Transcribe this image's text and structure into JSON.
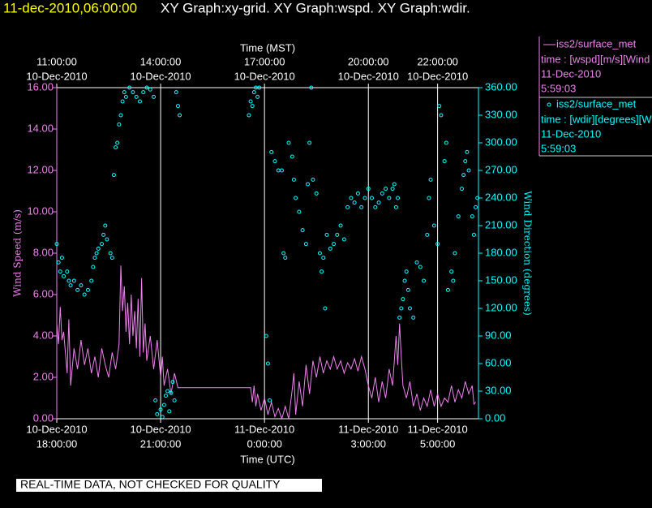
{
  "header": {
    "timestamp": "11-dec-2010,06:00:00",
    "title": "XY Graph:xy-grid.  XY Graph:wspd.  XY Graph:wdir."
  },
  "chart_data": {
    "type": "line",
    "grid": true,
    "xlabel": "Time (UTC)",
    "x2label": "Time (MST)",
    "ylabel": "Wind Speed (m/s)",
    "y2label": "Wind Direction (degrees)",
    "xlim": [
      18,
      30.18
    ],
    "xticks": [
      {
        "value": 18,
        "label": [
          "10-Dec-2010",
          "18:00:00"
        ]
      },
      {
        "value": 21,
        "label": [
          "10-Dec-2010",
          "21:00:00"
        ]
      },
      {
        "value": 24,
        "label": [
          "11-Dec-2010",
          "0:00:00"
        ]
      },
      {
        "value": 27,
        "label": [
          "11-Dec-2010",
          "3:00:00"
        ]
      },
      {
        "value": 29,
        "label": [
          "11-Dec-2010",
          "5:00:00"
        ]
      }
    ],
    "x2ticks": [
      {
        "value": 18,
        "label": [
          "11:00:00",
          "10-Dec-2010"
        ]
      },
      {
        "value": 21,
        "label": [
          "14:00:00",
          "10-Dec-2010"
        ]
      },
      {
        "value": 24,
        "label": [
          "17:00:00",
          "10-Dec-2010"
        ]
      },
      {
        "value": 27,
        "label": [
          "20:00:00",
          "10-Dec-2010"
        ]
      },
      {
        "value": 29,
        "label": [
          "22:00:00",
          "10-Dec-2010"
        ]
      }
    ],
    "ylim": [
      0,
      16
    ],
    "yticks": [
      {
        "value": 0,
        "label": "0.00"
      },
      {
        "value": 2,
        "label": "2.00"
      },
      {
        "value": 4,
        "label": "4.00"
      },
      {
        "value": 6,
        "label": "6.00"
      },
      {
        "value": 8,
        "label": "8.00"
      },
      {
        "value": 10,
        "label": "10.00"
      },
      {
        "value": 12,
        "label": "12.00"
      },
      {
        "value": 14,
        "label": "14.00"
      },
      {
        "value": 16,
        "label": "16.00"
      }
    ],
    "y2lim": [
      0,
      360
    ],
    "y2ticks": [
      {
        "value": 0,
        "label": "0.00"
      },
      {
        "value": 30,
        "label": "30.00"
      },
      {
        "value": 60,
        "label": "60.00"
      },
      {
        "value": 90,
        "label": "90.00"
      },
      {
        "value": 120,
        "label": "120.00"
      },
      {
        "value": 150,
        "label": "150.00"
      },
      {
        "value": 180,
        "label": "180.00"
      },
      {
        "value": 210,
        "label": "210.00"
      },
      {
        "value": 240,
        "label": "240.00"
      },
      {
        "value": 270,
        "label": "270.00"
      },
      {
        "value": 300,
        "label": "300.00"
      },
      {
        "value": 330,
        "label": "330.00"
      },
      {
        "value": 360,
        "label": "360.00"
      }
    ],
    "series": [
      {
        "name": "iss2/surface_met",
        "type": "line",
        "color": "#ee82ee",
        "legend_text": [
          "time : [wspd][m/s][Wind",
          "11-Dec-2010",
          "5:59:03"
        ],
        "x": [
          18.0,
          18.05,
          18.1,
          18.15,
          18.2,
          18.3,
          18.35,
          18.4,
          18.5,
          18.6,
          18.7,
          18.8,
          18.9,
          19.0,
          19.1,
          19.2,
          19.3,
          19.4,
          19.5,
          19.6,
          19.7,
          19.8,
          19.85,
          19.9,
          19.95,
          20.0,
          20.05,
          20.1,
          20.15,
          20.2,
          20.25,
          20.3,
          20.35,
          20.4,
          20.45,
          20.5,
          20.55,
          20.6,
          20.7,
          20.8,
          20.9,
          21.0,
          21.05,
          21.1,
          21.2,
          21.3,
          21.4,
          21.5,
          23.6,
          23.65,
          23.7,
          23.75,
          23.8,
          23.9,
          24.0,
          24.1,
          24.2,
          24.3,
          24.4,
          24.5,
          24.6,
          24.7,
          24.8,
          24.85,
          24.9,
          25.0,
          25.1,
          25.2,
          25.3,
          25.4,
          25.5,
          25.6,
          25.7,
          25.8,
          25.9,
          26.0,
          26.1,
          26.2,
          26.3,
          26.4,
          26.5,
          26.6,
          26.7,
          26.8,
          26.9,
          27.0,
          27.1,
          27.2,
          27.3,
          27.4,
          27.5,
          27.6,
          27.7,
          27.8,
          27.85,
          27.9,
          27.95,
          28.0,
          28.1,
          28.2,
          28.3,
          28.4,
          28.5,
          28.6,
          28.7,
          28.8,
          28.9,
          29.0,
          29.1,
          29.2,
          29.3,
          29.4,
          29.5,
          29.6,
          29.7,
          29.8,
          29.9,
          30.0,
          30.05,
          30.1
        ],
        "values": [
          4.6,
          3.6,
          5.4,
          3.8,
          4.2,
          2.2,
          4.8,
          1.6,
          3.4,
          2.4,
          3.8,
          2.6,
          3.4,
          2.2,
          3.0,
          2.0,
          3.4,
          2.6,
          2.0,
          3.2,
          2.4,
          3.6,
          7.4,
          5.2,
          6.4,
          4.2,
          5.6,
          3.6,
          6.0,
          4.0,
          5.2,
          3.4,
          5.8,
          3.0,
          6.8,
          3.2,
          4.6,
          2.8,
          4.0,
          2.4,
          3.8,
          2.0,
          3.0,
          1.6,
          2.4,
          1.2,
          2.2,
          1.5,
          1.5,
          0.8,
          1.6,
          0.6,
          1.2,
          0.4,
          1.0,
          0.2,
          0.8,
          0.1,
          0.5,
          0.0,
          0.6,
          0.0,
          1.4,
          2.2,
          0.2,
          1.8,
          0.6,
          2.6,
          1.2,
          2.8,
          2.0,
          3.0,
          2.2,
          2.8,
          2.4,
          3.0,
          2.4,
          2.8,
          2.2,
          2.7,
          2.4,
          2.9,
          2.3,
          3.0,
          2.4,
          1.6,
          1.0,
          2.0,
          0.8,
          1.8,
          1.0,
          2.4,
          1.6,
          4.0,
          2.6,
          4.6,
          3.0,
          1.6,
          1.0,
          1.8,
          0.6,
          1.2,
          0.4,
          1.0,
          0.6,
          1.4,
          0.6,
          1.2,
          0.6,
          1.0,
          0.8,
          1.6,
          0.8,
          1.4,
          1.0,
          1.8,
          1.2,
          1.6,
          0.7,
          0.8
        ]
      },
      {
        "name": "iss2/surface_met",
        "type": "scatter",
        "axis": "y2",
        "color": "#00ffff",
        "legend_text": [
          "time : [wdir][degrees][W",
          "11-Dec-2010",
          "5:59:03"
        ],
        "x": [
          18.0,
          18.05,
          18.1,
          18.15,
          18.2,
          18.3,
          18.35,
          18.4,
          18.5,
          18.6,
          18.7,
          18.8,
          18.9,
          19.0,
          19.05,
          19.1,
          19.15,
          19.2,
          19.3,
          19.35,
          19.4,
          19.45,
          19.55,
          19.6,
          19.65,
          19.7,
          19.75,
          19.8,
          19.85,
          19.9,
          19.95,
          20.0,
          20.1,
          20.2,
          20.3,
          20.4,
          20.5,
          20.6,
          20.7,
          20.8,
          20.85,
          20.9,
          21.0,
          21.05,
          21.1,
          21.15,
          21.2,
          21.25,
          21.3,
          21.35,
          21.4,
          21.45,
          21.5,
          21.55,
          23.55,
          23.6,
          23.65,
          23.7,
          23.75,
          23.8,
          23.85,
          24.05,
          24.1,
          24.15,
          24.2,
          24.3,
          24.4,
          24.5,
          24.55,
          24.6,
          24.7,
          24.8,
          24.85,
          24.9,
          25.0,
          25.1,
          25.2,
          25.25,
          25.3,
          25.35,
          25.4,
          25.5,
          25.6,
          25.65,
          25.7,
          25.75,
          25.8,
          25.9,
          26.0,
          26.1,
          26.2,
          26.3,
          26.4,
          26.5,
          26.6,
          26.7,
          26.8,
          26.9,
          27.0,
          27.1,
          27.2,
          27.3,
          27.4,
          27.5,
          27.6,
          27.7,
          27.75,
          27.8,
          27.85,
          27.9,
          27.95,
          28.0,
          28.05,
          28.1,
          28.15,
          28.2,
          28.3,
          28.4,
          28.5,
          28.6,
          28.7,
          28.75,
          28.8,
          28.9,
          29.0,
          29.05,
          29.1,
          29.2,
          29.25,
          29.3,
          29.4,
          29.45,
          29.5,
          29.6,
          29.7,
          29.75,
          29.8,
          29.85,
          29.9,
          30.0,
          30.05,
          30.1,
          30.15
        ],
        "values": [
          190,
          170,
          160,
          175,
          155,
          160,
          150,
          145,
          150,
          140,
          145,
          135,
          140,
          150,
          165,
          175,
          180,
          185,
          190,
          200,
          210,
          195,
          180,
          175,
          265,
          295,
          300,
          320,
          330,
          345,
          355,
          350,
          360,
          355,
          350,
          345,
          355,
          360,
          358,
          350,
          20,
          5,
          10,
          2,
          15,
          25,
          30,
          8,
          28,
          40,
          20,
          355,
          340,
          330,
          330,
          345,
          340,
          355,
          360,
          350,
          360,
          90,
          60,
          20,
          290,
          280,
          270,
          270,
          180,
          175,
          300,
          285,
          260,
          240,
          225,
          205,
          190,
          255,
          300,
          360,
          260,
          245,
          180,
          160,
          175,
          120,
          200,
          185,
          190,
          200,
          210,
          195,
          230,
          240,
          235,
          245,
          230,
          240,
          250,
          240,
          230,
          235,
          245,
          250,
          240,
          250,
          255,
          230,
          240,
          110,
          120,
          130,
          150,
          160,
          140,
          120,
          110,
          170,
          165,
          150,
          200,
          240,
          260,
          210,
          190,
          340,
          330,
          280,
          300,
          140,
          160,
          150,
          180,
          220,
          250,
          265,
          280,
          290,
          270,
          220,
          200,
          230,
          240
        ]
      }
    ]
  },
  "footer": {
    "note": "REAL-TIME DATA, NOT CHECKED FOR QUALITY"
  }
}
